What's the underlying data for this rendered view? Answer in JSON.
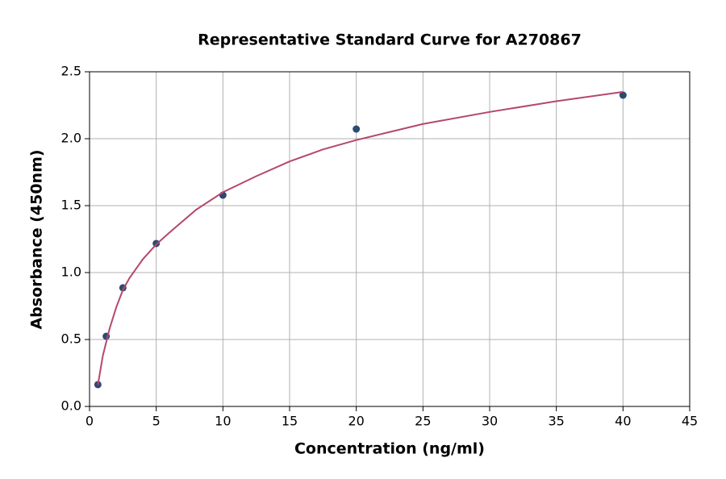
{
  "chart_data": {
    "type": "scatter",
    "title": "Representative Standard Curve for A270867",
    "x_label": "Concentration (ng/ml)",
    "y_label": "Absorbance (450nm)",
    "series": [
      {
        "mode": "markers",
        "color": "#2c4a72",
        "x": [
          0.625,
          1.25,
          2.5,
          5,
          10,
          20,
          40
        ],
        "values": [
          0.163,
          0.524,
          0.886,
          1.217,
          1.578,
          2.072,
          2.325
        ]
      },
      {
        "mode": "line",
        "color": "#b5476d",
        "x": [
          0.625,
          1,
          1.5,
          2,
          2.5,
          3,
          4,
          5,
          6,
          8,
          10,
          12.5,
          15,
          17.5,
          20,
          25,
          30,
          35,
          40
        ],
        "values": [
          0.16,
          0.38,
          0.58,
          0.74,
          0.87,
          0.96,
          1.1,
          1.21,
          1.3,
          1.47,
          1.6,
          1.72,
          1.83,
          1.92,
          1.99,
          2.11,
          2.2,
          2.28,
          2.35
        ]
      }
    ],
    "xlim": [
      0,
      45
    ],
    "ylim": [
      0,
      2.5
    ],
    "xticks": [
      0,
      5,
      10,
      15,
      20,
      25,
      30,
      35,
      40,
      45
    ],
    "yticks": [
      {
        "value": 0,
        "label": "0.0"
      },
      0.5,
      {
        "value": 1,
        "label": "1.0"
      },
      1.5,
      {
        "value": 2,
        "label": "2.0"
      },
      2.5
    ],
    "grid": true
  }
}
